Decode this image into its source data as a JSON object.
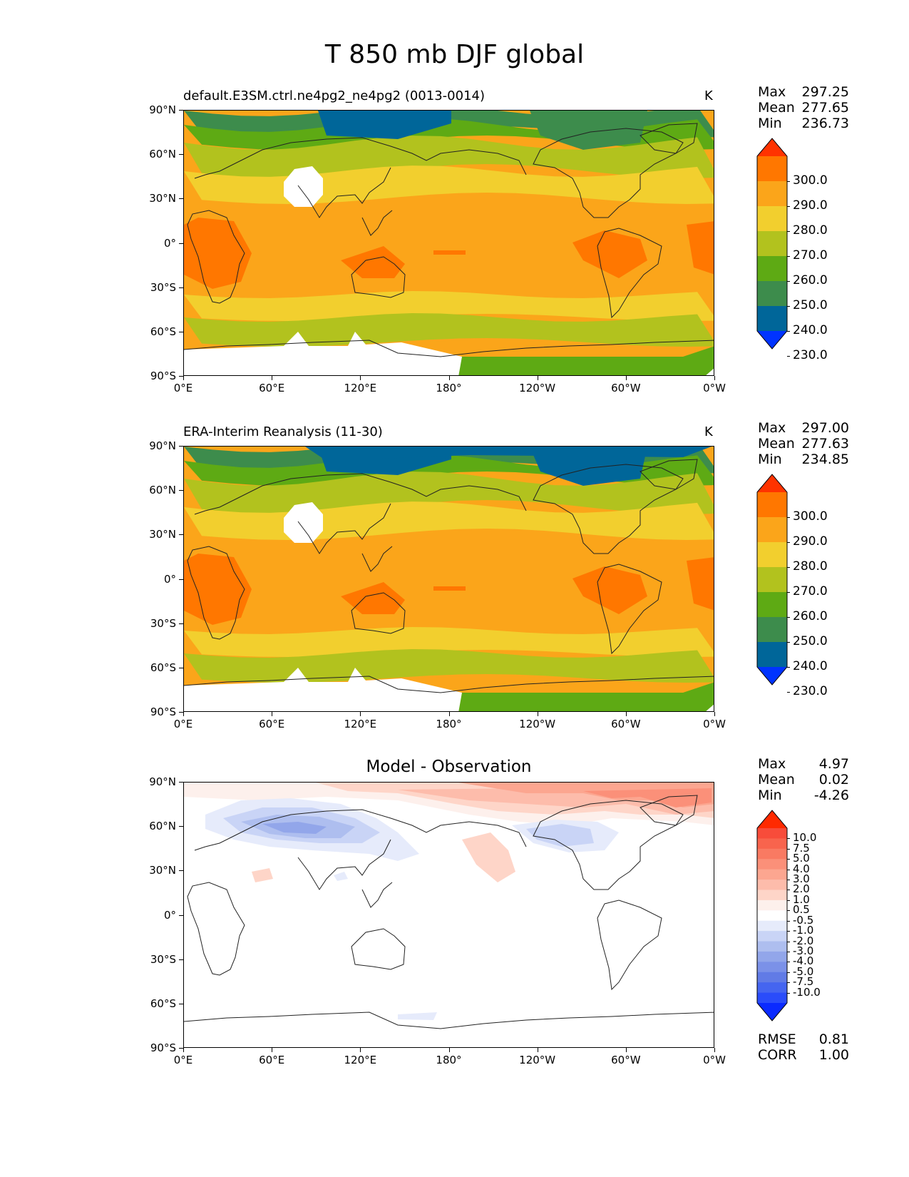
{
  "figure": {
    "title": "T 850 mb DJF global"
  },
  "axes": {
    "yticks": [
      "90°N",
      "60°N",
      "30°N",
      "0°",
      "30°S",
      "60°S",
      "90°S"
    ],
    "xticks": [
      "0°E",
      "60°E",
      "120°E",
      "180°",
      "120°W",
      "60°W",
      "0°W"
    ]
  },
  "panels": [
    {
      "title": "default.E3SM.ctrl.ne4pg2_ne4pg2 (0013-0014)",
      "units": "K",
      "stats": [
        {
          "label": "Max",
          "value": "297.25"
        },
        {
          "label": "Mean",
          "value": "277.65"
        },
        {
          "label": "Min",
          "value": "236.73"
        }
      ],
      "colorbar": {
        "labels": [
          "300.0",
          "290.0",
          "280.0",
          "270.0",
          "260.0",
          "250.0",
          "240.0",
          "230.0"
        ],
        "colors": [
          "#ff3300",
          "#ff7700",
          "#fba51a",
          "#f2cf2e",
          "#b2c21e",
          "#5eaa14",
          "#3d8c4c",
          "#006699",
          "#0033ff"
        ]
      }
    },
    {
      "title": "ERA-Interim Reanalysis (11-30)",
      "units": "K",
      "stats": [
        {
          "label": "Max",
          "value": "297.00"
        },
        {
          "label": "Mean",
          "value": "277.63"
        },
        {
          "label": "Min",
          "value": "234.85"
        }
      ],
      "colorbar": {
        "labels": [
          "300.0",
          "290.0",
          "280.0",
          "270.0",
          "260.0",
          "250.0",
          "240.0",
          "230.0"
        ],
        "colors": [
          "#ff3300",
          "#ff7700",
          "#fba51a",
          "#f2cf2e",
          "#b2c21e",
          "#5eaa14",
          "#3d8c4c",
          "#006699",
          "#0033ff"
        ]
      }
    },
    {
      "title": "Model - Observation",
      "units": "",
      "stats": [
        {
          "label": "Max",
          "value": "4.97"
        },
        {
          "label": "Mean",
          "value": "0.02"
        },
        {
          "label": "Min",
          "value": "-4.26"
        }
      ],
      "extra_stats": [
        {
          "label": "RMSE",
          "value": "0.81"
        },
        {
          "label": "CORR",
          "value": "1.00"
        }
      ],
      "colorbar": {
        "labels": [
          "10.0",
          "7.5",
          "5.0",
          "4.0",
          "3.0",
          "2.0",
          "1.0",
          "0.5",
          "-0.5",
          "-1.0",
          "-2.0",
          "-3.0",
          "-4.0",
          "-5.0",
          "-7.5",
          "-10.0"
        ],
        "colors": [
          "#ff2a00",
          "#f84c3a",
          "#f8644d",
          "#f97a62",
          "#fb9079",
          "#fca690",
          "#fdbcab",
          "#fed5c8",
          "#fdf0ec",
          "#ffffff",
          "#e6ebfb",
          "#c9d4f6",
          "#aebeef",
          "#92a6ea",
          "#7b91e8",
          "#617be6",
          "#4565f0",
          "#2a4cfa",
          "#0a2aff"
        ]
      }
    }
  ],
  "chart_data": {
    "type": "heatmap",
    "title": "T 850 mb DJF global",
    "variable": "T",
    "level": "850 mb",
    "season": "DJF",
    "region": "global",
    "units": "K",
    "x_range": [
      "0°E",
      "0°W"
    ],
    "y_range": [
      "90°S",
      "90°N"
    ],
    "xticks": [
      "0°E",
      "60°E",
      "120°E",
      "180°",
      "120°W",
      "60°W",
      "0°W"
    ],
    "yticks": [
      "90°N",
      "60°N",
      "30°N",
      "0°",
      "30°S",
      "60°S",
      "90°S"
    ],
    "panels": [
      {
        "name": "default.E3SM.ctrl.ne4pg2_ne4pg2 (0013-0014)",
        "max": 297.25,
        "mean": 277.65,
        "min": 236.73,
        "contour_levels": [
          230,
          240,
          250,
          260,
          270,
          280,
          290,
          300
        ]
      },
      {
        "name": "ERA-Interim Reanalysis (11-30)",
        "max": 297.0,
        "mean": 277.63,
        "min": 234.85,
        "contour_levels": [
          230,
          240,
          250,
          260,
          270,
          280,
          290,
          300
        ]
      },
      {
        "name": "Model - Observation",
        "max": 4.97,
        "mean": 0.02,
        "min": -4.26,
        "rmse": 0.81,
        "corr": 1.0,
        "contour_levels": [
          -10,
          -7.5,
          -5,
          -4,
          -3,
          -2,
          -1,
          -0.5,
          0.5,
          1,
          2,
          3,
          4,
          5,
          7.5,
          10
        ]
      }
    ]
  }
}
